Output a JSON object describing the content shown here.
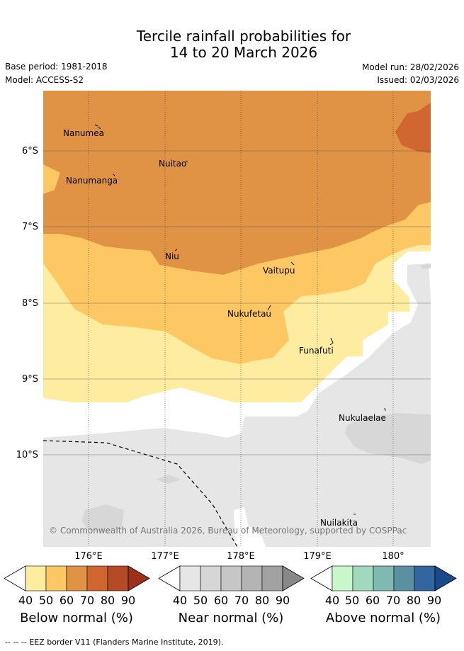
{
  "title": {
    "line1": "Tercile rainfall probabilities for",
    "line2": "14 to 20 March 2026"
  },
  "meta": {
    "base_period": "Base period: 1981-2018",
    "model": "Model: ACCESS-S2",
    "model_run": "Model run: 28/02/2026",
    "issued": "Issued: 02/03/2026"
  },
  "islands": [
    {
      "name": "Nanumea"
    },
    {
      "name": "Nuitao"
    },
    {
      "name": "Nanumanga"
    },
    {
      "name": "Niu"
    },
    {
      "name": "Vaitupu"
    },
    {
      "name": "Nukufetau"
    },
    {
      "name": "Funafuti"
    },
    {
      "name": "Nukulaelae"
    },
    {
      "name": "Nuilakita"
    }
  ],
  "axes": {
    "lat_labels": [
      "6°S",
      "7°S",
      "8°S",
      "9°S",
      "10°S"
    ],
    "lon_labels": [
      "176°E",
      "177°E",
      "178°E",
      "179°E",
      "180°"
    ]
  },
  "copyright": "© Commonwealth of Australia 2026, Bureau of Meteorology, supported by COSPPac",
  "colorbars": [
    {
      "title": "Below normal (%)",
      "ticks": [
        "40",
        "50",
        "60",
        "70",
        "80",
        "90"
      ],
      "colors": [
        "#ffffff",
        "#feeda0",
        "#fdc863",
        "#e09345",
        "#d16630",
        "#b54a27",
        "#9c2f1d"
      ]
    },
    {
      "title": "Near normal (%)",
      "ticks": [
        "40",
        "50",
        "60",
        "70",
        "80",
        "90"
      ],
      "colors": [
        "#ffffff",
        "#e6e6e6",
        "#d6d6d6",
        "#c6c6c6",
        "#b4b4b4",
        "#a2a2a2",
        "#888888"
      ]
    },
    {
      "title": "Above normal (%)",
      "ticks": [
        "40",
        "50",
        "60",
        "70",
        "80",
        "90"
      ],
      "colors": [
        "#ffffff",
        "#c8f7cc",
        "#a1d9bd",
        "#80b8b2",
        "#5a90a0",
        "#3366a0",
        "#1a4a88"
      ]
    }
  ],
  "eez_note": "EEZ border V11 (Flanders Marine Institute, 2019).",
  "eez_note_prefix": "-- -- --"
}
